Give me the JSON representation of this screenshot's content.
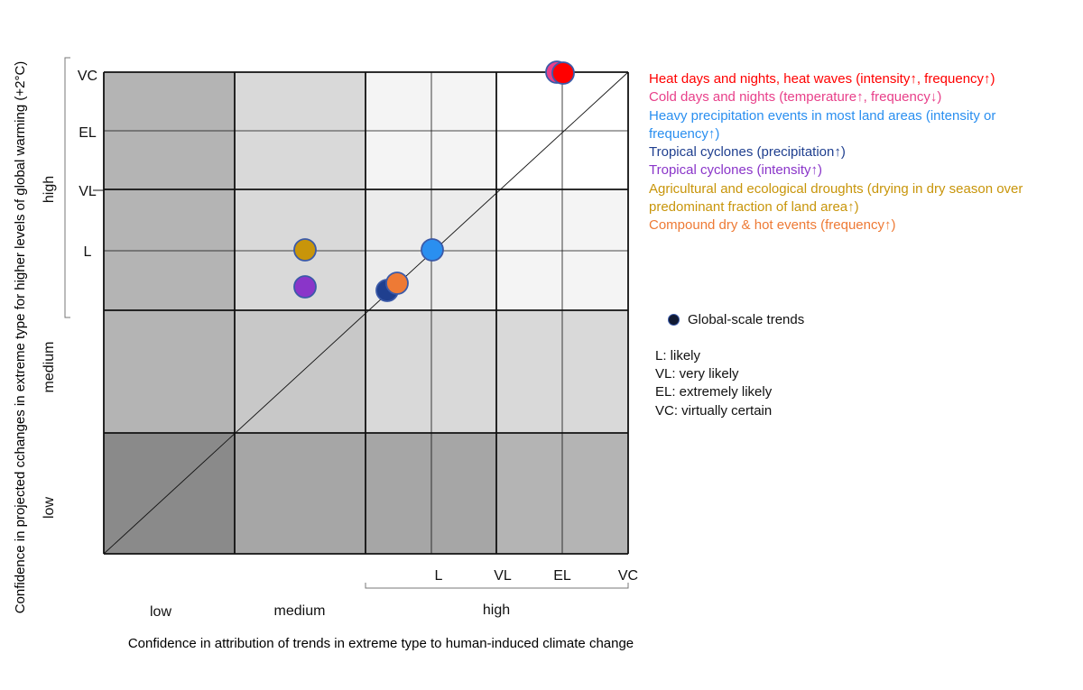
{
  "chart_data": {
    "type": "scatter",
    "xlabel": "Confidence in attribution of trends in extreme type to human-induced climate change",
    "ylabel": "Confidence in projected cchanges in extreme type for higher levels of global warming (+2°C)",
    "x_categories": [
      "low",
      "medium",
      "high"
    ],
    "y_categories": [
      "low",
      "medium",
      "high"
    ],
    "x_likelihood_ticks": [
      "L",
      "VL",
      "EL",
      "VC"
    ],
    "y_likelihood_ticks": [
      "VC",
      "EL",
      "VL",
      "L"
    ],
    "series": [
      {
        "name": "Heat days and nights, heat waves (intensity↑, frequency↑)",
        "color": "#ff0000",
        "x": "EL",
        "y": "VC"
      },
      {
        "name": "Cold days and nights (temperature↑, frequency↓)",
        "color": "#e8408a",
        "x": "EL",
        "y": "VC"
      },
      {
        "name": "Heavy precipitation events in most land areas (intensity or frequency↑)",
        "color": "#2a8ff0",
        "x": "L",
        "y": "L"
      },
      {
        "name": "Tropical cyclones (precipitation↑)",
        "color": "#1f3f8f",
        "x": "high",
        "y": "high"
      },
      {
        "name": "Tropical cyclones (intensity↑)",
        "color": "#8a35c9",
        "x": "medium",
        "y": "high"
      },
      {
        "name": "Agricultural and ecological droughts (drying in dry season over predominant fraction of land area↑)",
        "color": "#c8950a",
        "x": "medium",
        "y": "L"
      },
      {
        "name": "Compound dry & hot events (frequency↑)",
        "color": "#ee7a35",
        "x": "high",
        "y": "high"
      }
    ],
    "diagonal_line": true
  },
  "legend": {
    "entries": [
      {
        "text": "Heat days and nights, heat waves (intensity↑, frequency↑)",
        "color": "#ff0000"
      },
      {
        "text": "Cold days and nights (temperature↑, frequency↓)",
        "color": "#e8408a"
      },
      {
        "text": "Heavy precipitation events in most land areas (intensity or frequency↑)",
        "color": "#2a8ff0"
      },
      {
        "text": "Tropical cyclones (precipitation↑)",
        "color": "#1f3f8f"
      },
      {
        "text": "Tropical cyclones (intensity↑)",
        "color": "#8a35c9"
      },
      {
        "text": "Agricultural and ecological droughts (drying in dry season over predominant fraction of land area↑)",
        "color": "#c8950a"
      },
      {
        "text": "Compound dry & hot events (frequency↑)",
        "color": "#ee7a35"
      }
    ]
  },
  "key": {
    "global_trends": "Global-scale trends",
    "abbreviations": [
      "L: likely",
      "VL: very likely",
      "EL: extremely likely",
      "VC: virtually certain"
    ]
  },
  "colors": {
    "grid_line": "#111111",
    "cell_white": "#ffffff",
    "cell_lightest": "#f4f4f4",
    "cell_light": "#ececec",
    "cell_mid_light": "#d9d9d9",
    "cell_mid": "#c8c8c8",
    "cell_dark": "#b4b4b4",
    "cell_darker": "#a6a6a6",
    "cell_darkest": "#8a8a8a"
  }
}
